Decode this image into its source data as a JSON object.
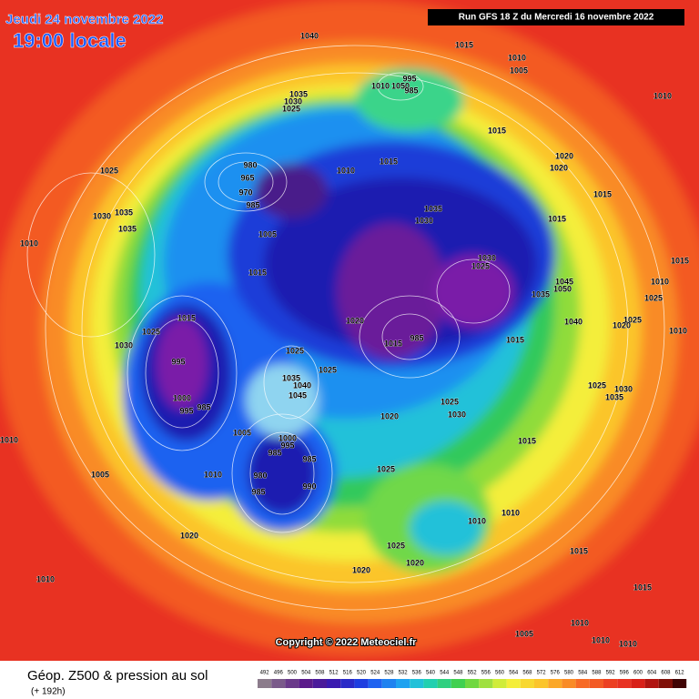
{
  "header": {
    "date": "Jeudi 24 novembre 2022",
    "time": "19:00 locale",
    "run": "Run GFS 18 Z du Mercredi 16 novembre 2022"
  },
  "map": {
    "pressure_labels": [
      1040,
      1015,
      1010,
      1005,
      1010,
      1010,
      1050,
      995,
      985,
      1035,
      1030,
      1025,
      1015,
      1025,
      1010,
      1015,
      980,
      965,
      970,
      985,
      1020,
      1020,
      1015,
      1035,
      1030,
      1015,
      1030,
      1035,
      1035,
      1010,
      1005,
      1030,
      1025,
      1015,
      1045,
      1050,
      1035,
      1015,
      1010,
      1025,
      1015,
      1025,
      1020,
      1040,
      1025,
      1020,
      1010,
      1030,
      995,
      1015,
      985,
      1015,
      1025,
      1025,
      1035,
      1040,
      1045,
      1000,
      995,
      985,
      1025,
      1030,
      1035,
      1025,
      1030,
      1020,
      1010,
      1005,
      1000,
      995,
      985,
      985,
      1015,
      1005,
      1010,
      980,
      990,
      985,
      1025,
      1010,
      1010,
      1025,
      1015,
      1020,
      1020,
      1020,
      1015,
      1010,
      1010,
      1005,
      1010,
      1010
    ],
    "copyright": "Copyright © 2022 Meteociel.fr"
  },
  "footer": {
    "title": "Géop. Z500 & pression au sol",
    "subtitle": "(+ 192h)",
    "scale": [
      492,
      496,
      500,
      504,
      508,
      512,
      516,
      520,
      524,
      528,
      532,
      536,
      540,
      544,
      548,
      552,
      556,
      560,
      564,
      568,
      572,
      576,
      580,
      584,
      588,
      592,
      596,
      600,
      604,
      608,
      612
    ]
  }
}
